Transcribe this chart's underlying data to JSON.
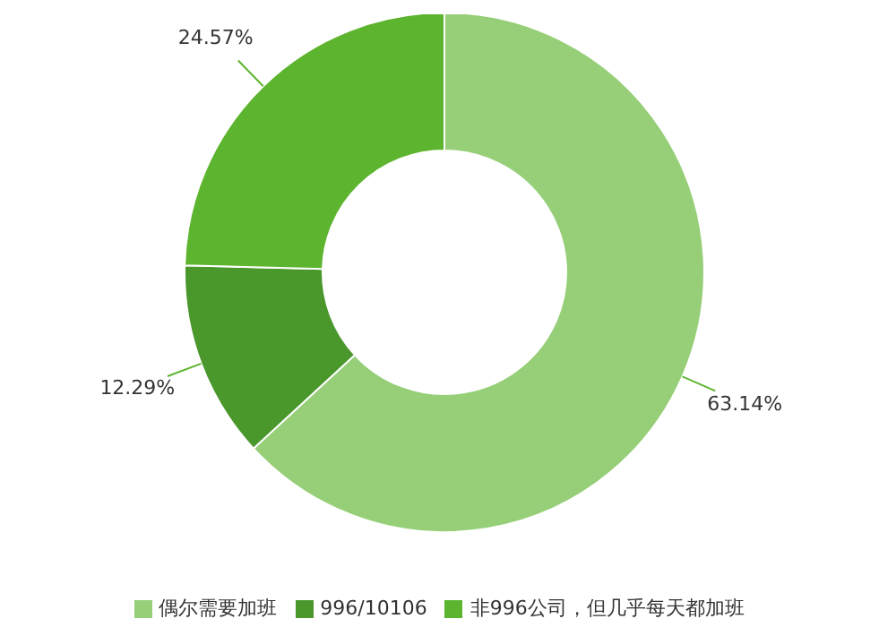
{
  "chart_data": {
    "type": "donut",
    "categories": [
      "偶尔需要加班",
      "996/10106",
      "非996公司，但几乎每天都加班"
    ],
    "values": [
      63.14,
      12.29,
      24.57
    ],
    "colors": [
      "#96cf78",
      "#4a972c",
      "#5db42f"
    ],
    "legend": "bottom",
    "value_labels": [
      "63.14%",
      "12.29%",
      "24.57%"
    ]
  }
}
